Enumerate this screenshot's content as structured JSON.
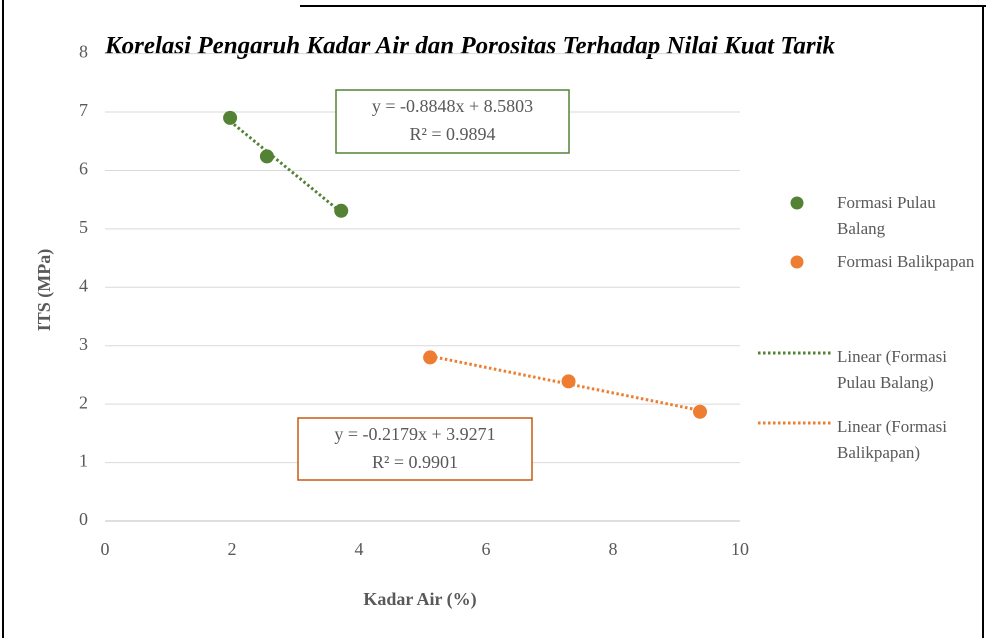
{
  "chart_data": {
    "type": "scatter",
    "title": "Korelasi Pengaruh Kadar Air dan Porositas Terhadap Nilai Kuat Tarik",
    "x_label": "Kadar Air (%)",
    "y_label": "ITS (MPa)",
    "xlim": [
      0,
      10
    ],
    "xticks": [
      0,
      2,
      4,
      6,
      8,
      10
    ],
    "ylim": [
      0,
      8
    ],
    "yticks": [
      0,
      1,
      2,
      3,
      4,
      5,
      6,
      7,
      8
    ],
    "grid": true,
    "series": [
      {
        "name": "Formasi Pulau Balang",
        "color": "#548235",
        "x": [
          1.97,
          2.55,
          3.72
        ],
        "values": [
          6.9,
          6.24,
          5.31
        ]
      },
      {
        "name": "Formasi Balikpapan",
        "color": "#ed7d31",
        "x": [
          5.12,
          7.3,
          9.37
        ],
        "values": [
          2.8,
          2.39,
          1.87
        ]
      }
    ],
    "trendlines": [
      {
        "name": "Linear (Formasi Pulau Balang)",
        "color": "#548235"
      },
      {
        "name": "Linear (Formasi Balikpapan)",
        "color": "#ed7d31"
      }
    ],
    "annotations": [
      {
        "lines": [
          "y = -0.8848x + 8.5803",
          "R² = 0.9894"
        ],
        "color": "#548235"
      },
      {
        "lines": [
          "y = -0.2179x + 3.9271",
          "R² = 0.9901"
        ],
        "color": "#c55a11"
      }
    ]
  }
}
